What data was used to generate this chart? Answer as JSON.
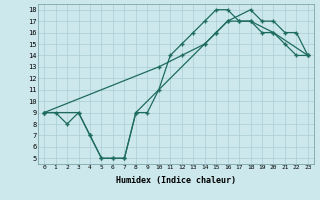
{
  "xlabel": "Humidex (Indice chaleur)",
  "bg_color": "#cce8ec",
  "grid_color": "#aacdd4",
  "line_color": "#1e6b60",
  "xlim": [
    -0.5,
    23.5
  ],
  "ylim": [
    4.5,
    18.5
  ],
  "xticks": [
    0,
    1,
    2,
    3,
    4,
    5,
    6,
    7,
    8,
    9,
    10,
    11,
    12,
    13,
    14,
    15,
    16,
    17,
    18,
    19,
    20,
    21,
    22,
    23
  ],
  "yticks": [
    5,
    6,
    7,
    8,
    9,
    10,
    11,
    12,
    13,
    14,
    15,
    16,
    17,
    18
  ],
  "line1_x": [
    0,
    1,
    2,
    3,
    4,
    5,
    6,
    7,
    8,
    9,
    10,
    11,
    12,
    13,
    14,
    15,
    16,
    17,
    18,
    19,
    20,
    21,
    22,
    23
  ],
  "line1_y": [
    9,
    9,
    8,
    9,
    7,
    5,
    5,
    5,
    9,
    9,
    11,
    14,
    15,
    16,
    17,
    18,
    18,
    17,
    17,
    16,
    16,
    15,
    14,
    14
  ],
  "line2_x": [
    0,
    10,
    12,
    14,
    15,
    16,
    17,
    18,
    20,
    23
  ],
  "line2_y": [
    9,
    13,
    14,
    15,
    16,
    17,
    17,
    17,
    16,
    14
  ],
  "line3_x": [
    0,
    3,
    4,
    5,
    6,
    7,
    8,
    14,
    15,
    16,
    18,
    19,
    20,
    21,
    22,
    23
  ],
  "line3_y": [
    9,
    9,
    7,
    5,
    5,
    5,
    9,
    15,
    16,
    17,
    18,
    17,
    17,
    16,
    16,
    14
  ]
}
